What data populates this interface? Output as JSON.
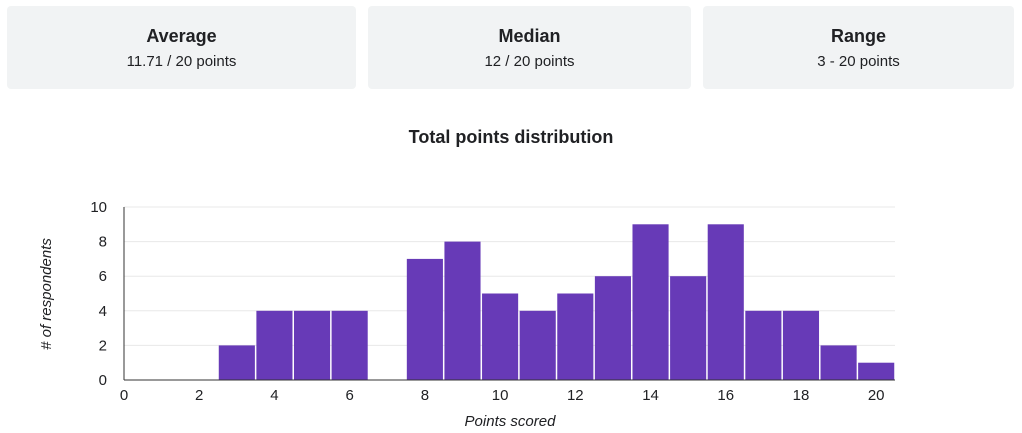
{
  "summary": {
    "average": {
      "label": "Average",
      "value": "11.71 / 20 points"
    },
    "median": {
      "label": "Median",
      "value": "12 / 20 points"
    },
    "range": {
      "label": "Range",
      "value": "3 - 20 points"
    }
  },
  "colors": {
    "bar": "#673ab7",
    "card": "#f1f3f4",
    "grid": "#e8e8e8",
    "axis": "#333333"
  },
  "chart_data": {
    "type": "bar",
    "title": "Total points distribution",
    "xlabel": "Points scored",
    "ylabel": "# of respondents",
    "xlim": [
      0,
      20.5
    ],
    "ylim": [
      0,
      10
    ],
    "x_ticks": [
      0,
      2,
      4,
      6,
      8,
      10,
      12,
      14,
      16,
      18,
      20
    ],
    "y_ticks": [
      0,
      2,
      4,
      6,
      8,
      10
    ],
    "grid": true,
    "legend": "none",
    "bins": [
      {
        "x": 3,
        "value": 2
      },
      {
        "x": 4,
        "value": 4
      },
      {
        "x": 5,
        "value": 4
      },
      {
        "x": 6,
        "value": 4
      },
      {
        "x": 8,
        "value": 7
      },
      {
        "x": 9,
        "value": 8
      },
      {
        "x": 10,
        "value": 5
      },
      {
        "x": 11,
        "value": 4
      },
      {
        "x": 12,
        "value": 5
      },
      {
        "x": 13,
        "value": 6
      },
      {
        "x": 14,
        "value": 9
      },
      {
        "x": 15,
        "value": 6
      },
      {
        "x": 16,
        "value": 9
      },
      {
        "x": 17,
        "value": 4
      },
      {
        "x": 18,
        "value": 4
      },
      {
        "x": 19,
        "value": 2
      },
      {
        "x": 20,
        "value": 1
      }
    ]
  }
}
